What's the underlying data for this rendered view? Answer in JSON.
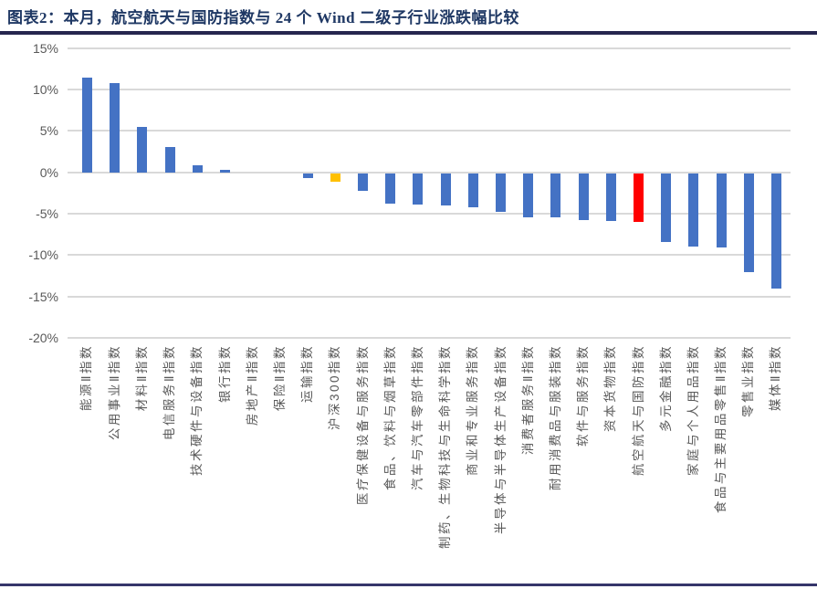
{
  "header": {
    "title": "图表2：本月，航空航天与国防指数与 24 个 Wind 二级子行业涨跌幅比较"
  },
  "chart_data": {
    "type": "bar",
    "title": "本月，航空航天与国防指数与24个Wind二级子行业涨跌幅比较",
    "xlabel": "",
    "ylabel": "",
    "ylim": [
      -20,
      15
    ],
    "grid": true,
    "legend": "none",
    "y_tick_labels": [
      "15%",
      "10%",
      "5%",
      "0%",
      "-5%",
      "-10%",
      "-15%",
      "-20%"
    ],
    "y_tick_values": [
      15,
      10,
      5,
      0,
      -5,
      -10,
      -15,
      -20
    ],
    "categories": [
      "能源Ⅱ指数",
      "公用事业Ⅱ指数",
      "材料Ⅱ指数",
      "电信服务Ⅱ指数",
      "技术硬件与设备指数",
      "银行指数",
      "房地产Ⅱ指数",
      "保险Ⅱ指数",
      "运输指数",
      "沪深300指数",
      "医疗保健设备与服务指数",
      "食品、饮料与烟草指数",
      "汽车与汽车零部件指数",
      "制药、生物科技与生命科学指数",
      "商业和专业服务指数",
      "半导体与半导体生产设备指数",
      "消费者服务Ⅱ指数",
      "耐用消费品与服装指数",
      "软件与服务指数",
      "资本货物指数",
      "航空航天与国防指数",
      "多元金融指数",
      "家庭与个人用品指数",
      "食品与主要用品零售Ⅱ指数",
      "零售业指数",
      "媒体Ⅱ指数"
    ],
    "values": [
      11.4,
      10.8,
      5.5,
      3.0,
      0.8,
      0.3,
      0.0,
      0.0,
      -0.7,
      -1.1,
      -2.2,
      -3.8,
      -3.9,
      -4.0,
      -4.2,
      -4.8,
      -5.4,
      -5.5,
      -5.8,
      -5.9,
      -6.0,
      -8.4,
      -9.0,
      -9.1,
      -12.1,
      -14.0
    ],
    "bar_colors": [
      "#4472c4",
      "#4472c4",
      "#4472c4",
      "#4472c4",
      "#4472c4",
      "#4472c4",
      "#4472c4",
      "#4472c4",
      "#4472c4",
      "#ffc000",
      "#4472c4",
      "#4472c4",
      "#4472c4",
      "#4472c4",
      "#4472c4",
      "#4472c4",
      "#4472c4",
      "#4472c4",
      "#4472c4",
      "#4472c4",
      "#ff0000",
      "#4472c4",
      "#4472c4",
      "#4472c4",
      "#4472c4",
      "#4472c4"
    ],
    "highlight_series": [
      {
        "category": "沪深300指数",
        "color": "#ffc000"
      },
      {
        "category": "航空航天与国防指数",
        "color": "#ff0000"
      }
    ]
  },
  "colors": {
    "title_text": "#1f3864",
    "default_bar": "#4472c4",
    "gridline": "#d9d9d9",
    "axis_text": "#595959",
    "rule": "#26264f"
  }
}
